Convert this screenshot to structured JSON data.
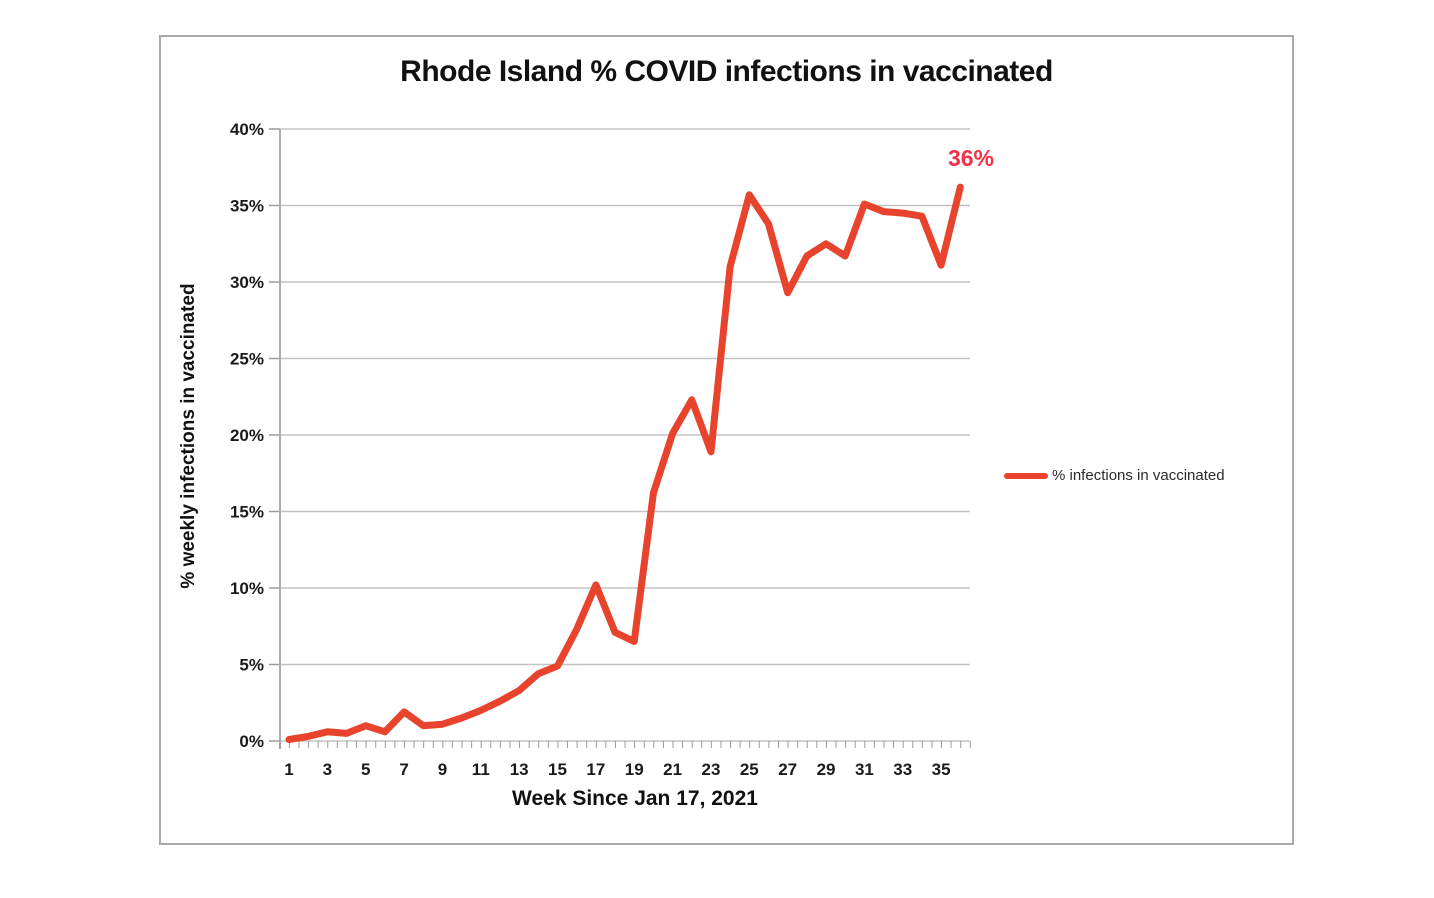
{
  "chart_data": {
    "type": "line",
    "title": "Rhode Island % COVID infections in vaccinated",
    "xlabel": "Week Since Jan 17, 2021",
    "ylabel": "% weekly infections in vaccinated",
    "x": [
      1,
      2,
      3,
      4,
      5,
      6,
      7,
      8,
      9,
      10,
      11,
      12,
      13,
      14,
      15,
      16,
      17,
      18,
      19,
      20,
      21,
      22,
      23,
      24,
      25,
      26,
      27,
      28,
      29,
      30,
      31,
      32,
      33,
      34,
      35,
      36
    ],
    "values": [
      0.1,
      0.3,
      0.6,
      0.5,
      1.0,
      0.6,
      1.9,
      1.0,
      1.1,
      1.5,
      2.0,
      2.6,
      3.3,
      4.4,
      4.9,
      7.3,
      10.2,
      7.1,
      6.5,
      16.2,
      20.1,
      22.3,
      18.9,
      31.0,
      35.7,
      33.8,
      29.3,
      31.7,
      32.5,
      31.7,
      35.1,
      34.6,
      34.5,
      34.3,
      31.1,
      36.2
    ],
    "ylim": [
      0,
      40
    ],
    "ytick_step": 5,
    "ytick_labels": [
      "0%",
      "5%",
      "10%",
      "15%",
      "20%",
      "25%",
      "30%",
      "35%",
      "40%"
    ],
    "xtick_labels": [
      "1",
      "3",
      "5",
      "7",
      "9",
      "11",
      "13",
      "15",
      "17",
      "19",
      "21",
      "23",
      "25",
      "27",
      "29",
      "31",
      "33",
      "35"
    ],
    "xtick_weeks": [
      1,
      3,
      5,
      7,
      9,
      11,
      13,
      15,
      17,
      19,
      21,
      23,
      25,
      27,
      29,
      31,
      33,
      35
    ],
    "grid": true,
    "legend": {
      "position": "right",
      "label": "% infections in vaccinated"
    },
    "annotation": {
      "text": "36%"
    },
    "colors": {
      "series": "#E8432C",
      "annotation": "#F43148",
      "grid": "#C3C3C3",
      "axis": "#ADADAD",
      "tick": "#9C9C9C",
      "text": "#1A1A1A"
    }
  }
}
